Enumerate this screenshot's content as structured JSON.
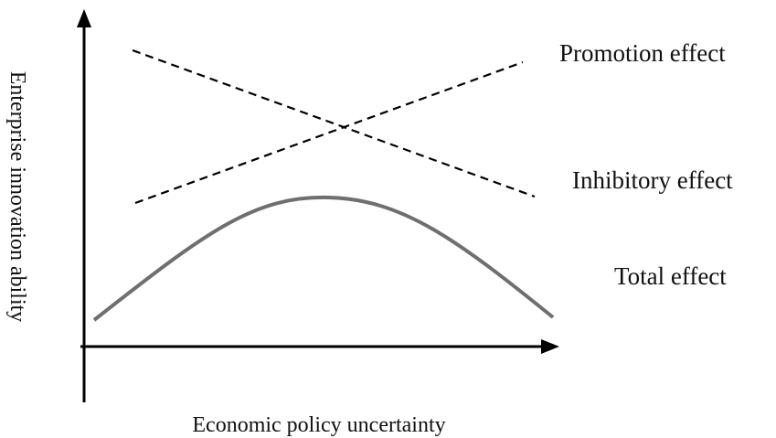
{
  "x_axis_label": "Economic policy uncertainty",
  "y_axis_label": "Enterprise innovation ability",
  "curves": [
    {
      "label": "Promotion effect"
    },
    {
      "label": "Inhibitory effect"
    },
    {
      "label": "Total effect"
    }
  ]
}
